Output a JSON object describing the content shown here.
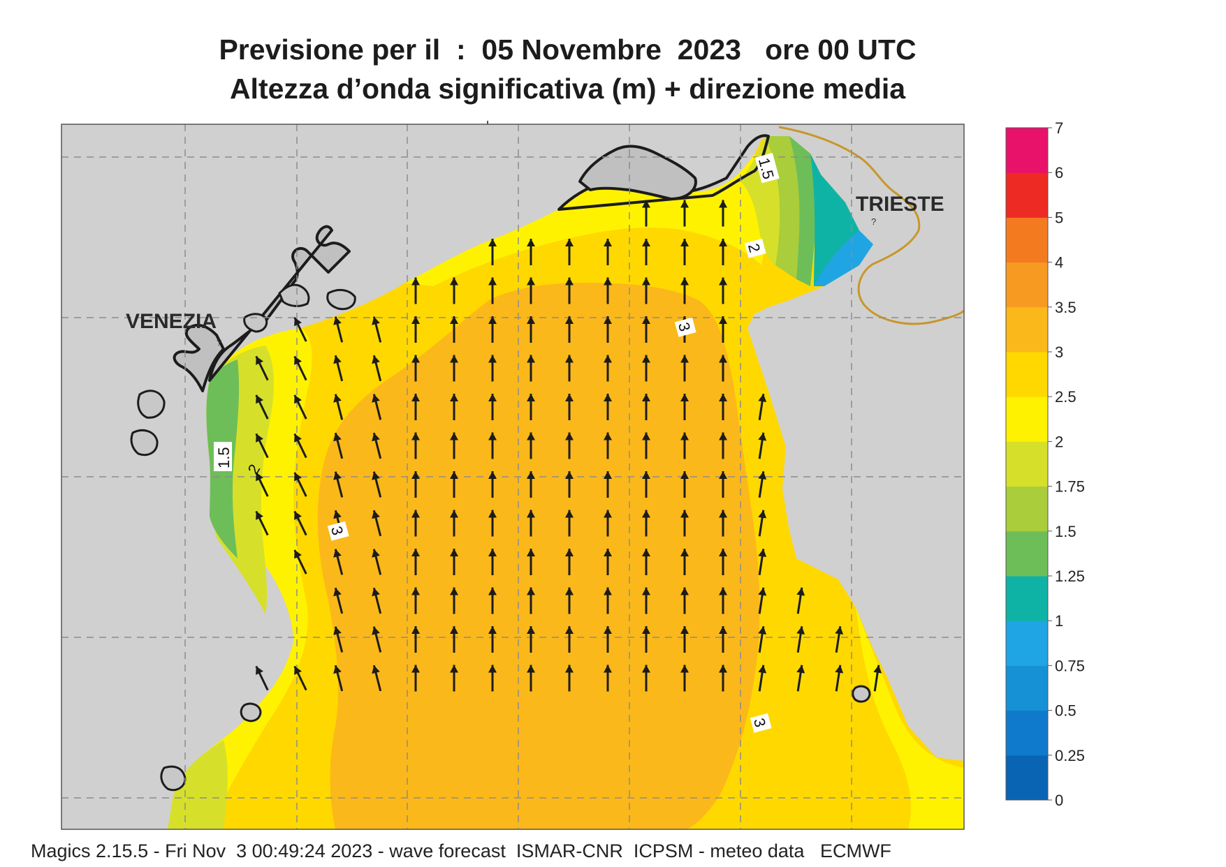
{
  "title_line1": "Previsione per il  :  05 Novembre  2023   ore 00 UTC",
  "title_line2": "Altezza d’onda significativa (m) + direzione media",
  "footer": "Magics 2.15.5 - Fri Nov  3 00:49:24 2023 - wave forecast  ISMAR-CNR  ICPSM - meteo data   ECMWF",
  "cities": [
    {
      "name": "VENEZIA"
    },
    {
      "name": "TRIESTE"
    }
  ],
  "colorbar": {
    "ticks": [
      "0",
      "0.25",
      "0.5",
      "0.75",
      "1",
      "1.25",
      "1.5",
      "1.75",
      "2",
      "2.5",
      "3",
      "3.5",
      "4",
      "5",
      "6",
      "7"
    ],
    "colors": [
      "#0a64b4",
      "#0f7acb",
      "#1691d6",
      "#1fa5e4",
      "#0fb3a6",
      "#6dbe58",
      "#a9cd3b",
      "#d6e02a",
      "#fff200",
      "#ffd800",
      "#fbb81a",
      "#f79a22",
      "#f47a20",
      "#ee2a24",
      "#e8126a"
    ]
  },
  "contour_labels": [
    "1.5",
    "1.5",
    "2",
    "2",
    "3",
    "3",
    "3"
  ],
  "wave_direction_field": {
    "rows": [
      {
        "lat_index": 1,
        "cols": [
          15,
          16,
          17
        ]
      },
      {
        "lat_index": 2,
        "cols": [
          11,
          12,
          13,
          14,
          15,
          16,
          17
        ]
      },
      {
        "lat_index": 3,
        "cols": [
          9,
          10,
          11,
          12,
          13,
          14,
          15,
          16,
          17
        ]
      },
      {
        "lat_index": 4,
        "cols": [
          6,
          7,
          8,
          9,
          10,
          11,
          12,
          13,
          14,
          15,
          16,
          17
        ]
      },
      {
        "lat_index": 5,
        "cols": [
          5,
          6,
          7,
          8,
          9,
          10,
          11,
          12,
          13,
          14,
          15,
          16,
          17
        ]
      },
      {
        "lat_index": 6,
        "cols": [
          5,
          6,
          7,
          8,
          9,
          10,
          11,
          12,
          13,
          14,
          15,
          16,
          17,
          18
        ]
      },
      {
        "lat_index": 7,
        "cols": [
          5,
          6,
          7,
          8,
          9,
          10,
          11,
          12,
          13,
          14,
          15,
          16,
          17,
          18
        ]
      },
      {
        "lat_index": 8,
        "cols": [
          5,
          6,
          7,
          8,
          9,
          10,
          11,
          12,
          13,
          14,
          15,
          16,
          17,
          18
        ]
      },
      {
        "lat_index": 9,
        "cols": [
          5,
          6,
          7,
          8,
          9,
          10,
          11,
          12,
          13,
          14,
          15,
          16,
          17,
          18
        ]
      },
      {
        "lat_index": 10,
        "cols": [
          6,
          7,
          8,
          9,
          10,
          11,
          12,
          13,
          14,
          15,
          16,
          17,
          18
        ]
      },
      {
        "lat_index": 11,
        "cols": [
          7,
          8,
          9,
          10,
          11,
          12,
          13,
          14,
          15,
          16,
          17,
          18,
          19
        ]
      },
      {
        "lat_index": 12,
        "cols": [
          7,
          8,
          9,
          10,
          11,
          12,
          13,
          14,
          15,
          16,
          17,
          18,
          19,
          20
        ]
      },
      {
        "lat_index": 13,
        "cols": [
          5,
          6,
          7,
          8,
          9,
          10,
          11,
          12,
          13,
          14,
          15,
          16,
          17,
          18,
          19,
          20,
          21
        ]
      }
    ]
  }
}
